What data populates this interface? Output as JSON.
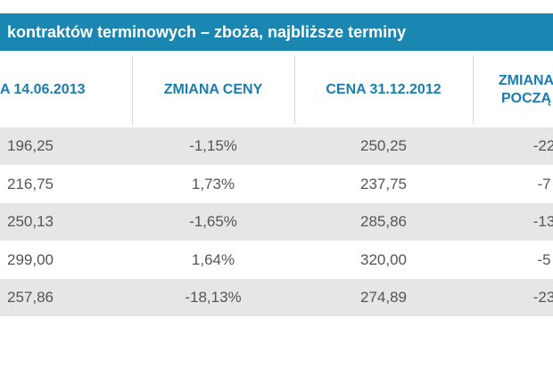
{
  "title": "kontraktów terminowych – zboża, najbliższe terminy",
  "table": {
    "header": [
      [
        "A 14.06.2013"
      ],
      [
        "ZMIANA CENY"
      ],
      [
        "CENA 31.12.2012"
      ],
      [
        "ZMIANA",
        "POCZĄ"
      ]
    ],
    "rows": [
      [
        "196,25",
        "-1,15%",
        "250,25",
        "-22"
      ],
      [
        "216,75",
        "1,73%",
        "237,75",
        "-7"
      ],
      [
        "250,13",
        "-1,65%",
        "285,86",
        "-13"
      ],
      [
        "299,00",
        "1,64%",
        "320,00",
        "-5"
      ],
      [
        "257,86",
        "-18,13%",
        "274,89",
        "-23"
      ]
    ]
  }
}
